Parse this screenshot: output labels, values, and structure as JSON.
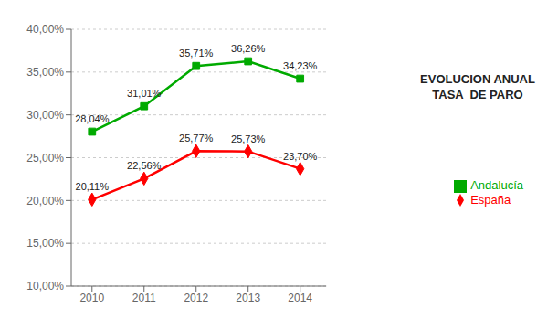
{
  "chart_data": {
    "type": "line",
    "annotations": [
      "EVOLUCION ANUAL\nTASA  DE PARO"
    ],
    "x": [
      2010,
      2011,
      2012,
      2013,
      2014
    ],
    "xlim": [
      2009.6,
      2014.5
    ],
    "xticks": [
      2010,
      2011,
      2012,
      2013,
      2014
    ],
    "ylim": [
      10,
      40
    ],
    "yticks": [
      {
        "value": 10,
        "label": "10,00%"
      },
      {
        "value": 15,
        "label": "15,00%"
      },
      {
        "value": 20,
        "label": "20,00%"
      },
      {
        "value": 25,
        "label": "25,00%"
      },
      {
        "value": 30,
        "label": "30,00%"
      },
      {
        "value": 35,
        "label": "35,00%"
      },
      {
        "value": 40,
        "label": "40,00%"
      }
    ],
    "grid": true,
    "legend": "right",
    "data_labels": true,
    "series": [
      {
        "name": "España",
        "color": "#FF0000",
        "marker": "diamond",
        "values": [
          20.11,
          22.56,
          25.77,
          25.73,
          23.7
        ],
        "value_labels": [
          "20,11%",
          "22,56%",
          "25,77%",
          "25,73%",
          "23,70%"
        ]
      },
      {
        "name": "Andalucía",
        "color": "#00AA00",
        "marker": "square",
        "values": [
          28.04,
          31.01,
          35.71,
          36.26,
          34.23
        ],
        "value_labels": [
          "28,04%",
          "31,01%",
          "35,71%",
          "36,26%",
          "34,23%"
        ]
      }
    ]
  }
}
